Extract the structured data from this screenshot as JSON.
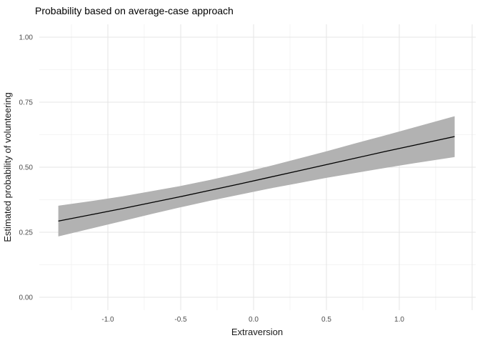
{
  "chart_data": {
    "type": "line",
    "title": "Probability based on average-case approach",
    "xlabel": "Extraversion",
    "ylabel": "Estimated probability of volunteering",
    "legend": "none",
    "grid": "on",
    "xlim": [
      -1.4705,
      1.5245
    ],
    "ylim": [
      -0.0495,
      1.0495
    ],
    "x_ticks": {
      "values": [
        -1.0,
        -0.5,
        0.0,
        0.5,
        1.0
      ],
      "labels": [
        "-1.0",
        "-0.5",
        "0.0",
        "0.5",
        "1.0"
      ]
    },
    "y_ticks": {
      "values": [
        0.0,
        0.25,
        0.5,
        0.75,
        1.0
      ],
      "labels": [
        "0.00",
        "0.25",
        "0.50",
        "0.75",
        "1.00"
      ]
    },
    "x_grid_major": [
      -1.0,
      -0.5,
      0.0,
      0.5,
      1.0,
      1.5
    ],
    "x_grid_minor": [
      -1.25,
      -0.75,
      -0.25,
      0.25,
      0.75,
      1.25
    ],
    "y_grid_minor": [
      0.125,
      0.375,
      0.625,
      0.875
    ],
    "x": [
      -1.34,
      -1.1,
      -0.9,
      -0.7,
      -0.5,
      -0.3,
      -0.1,
      0.1,
      0.3,
      0.5,
      0.7,
      0.9,
      1.1,
      1.38
    ],
    "series": [
      {
        "name": "fit",
        "values": [
          0.293,
          0.319,
          0.341,
          0.364,
          0.387,
          0.411,
          0.435,
          0.46,
          0.485,
          0.51,
          0.535,
          0.56,
          0.584,
          0.618
        ]
      },
      {
        "name": "ci_lower",
        "values": [
          0.234,
          0.266,
          0.293,
          0.32,
          0.346,
          0.371,
          0.394,
          0.417,
          0.438,
          0.459,
          0.478,
          0.497,
          0.515,
          0.539
        ]
      },
      {
        "name": "ci_upper",
        "values": [
          0.352,
          0.371,
          0.388,
          0.408,
          0.428,
          0.451,
          0.476,
          0.503,
          0.532,
          0.561,
          0.592,
          0.622,
          0.653,
          0.696
        ]
      }
    ],
    "colors": {
      "line": "#000000",
      "ribbon": "#b2b2b2",
      "grid_major": "#e4e4e4",
      "grid_minor": "#f1f1f1",
      "tick_label": "#4d4d4d",
      "axis_title": "#1a1a1a",
      "title": "#000000",
      "background": "#ffffff"
    }
  }
}
